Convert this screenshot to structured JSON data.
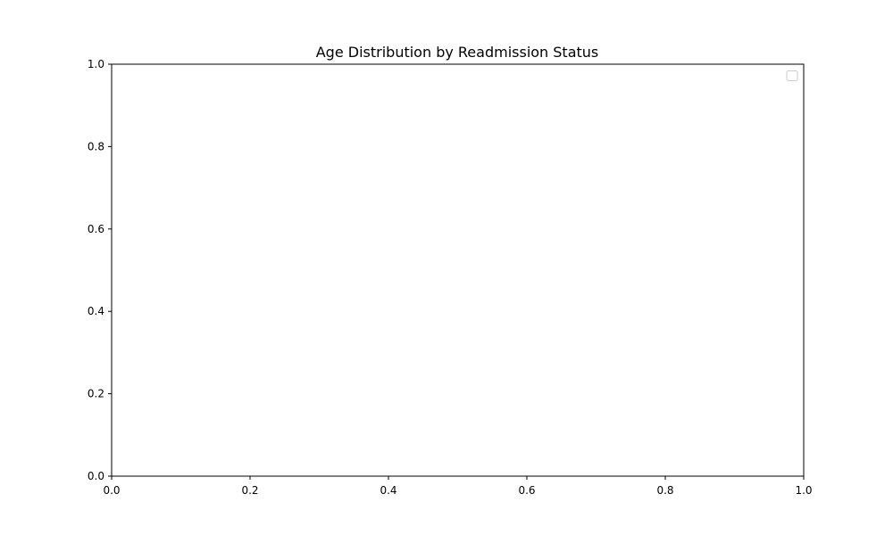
{
  "chart_data": {
    "type": "line",
    "title": "Age Distribution by Readmission Status",
    "xlabel": "",
    "ylabel": "",
    "xlim": [
      0.0,
      1.0
    ],
    "ylim": [
      0.0,
      1.0
    ],
    "x_ticks": [
      "0.0",
      "0.2",
      "0.4",
      "0.6",
      "0.8",
      "1.0"
    ],
    "y_ticks": [
      "0.0",
      "0.2",
      "0.4",
      "0.6",
      "0.8",
      "1.0"
    ],
    "series": [],
    "grid": false,
    "legend": {
      "placement": "top-right",
      "entries": []
    },
    "colors": {
      "axes": "#000000",
      "legend_border": "#cccccc",
      "background": "#ffffff"
    }
  }
}
